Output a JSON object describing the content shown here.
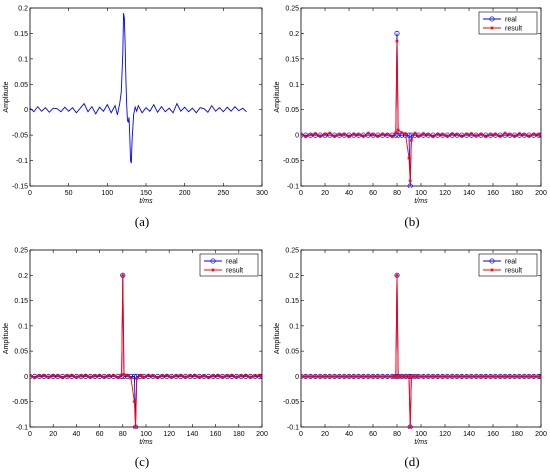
{
  "figure": {
    "panels": [
      {
        "id": "a",
        "caption": "(a)"
      },
      {
        "id": "b",
        "caption": "(b)"
      },
      {
        "id": "c",
        "caption": "(c)"
      },
      {
        "id": "d",
        "caption": "(d)"
      }
    ]
  },
  "colors": {
    "real": "#0000ff",
    "result": "#ff0000",
    "axis": "#000000"
  },
  "chart_data": [
    {
      "id": "a",
      "type": "line",
      "title": "",
      "xlabel": "t/ms",
      "ylabel": "Amplitude",
      "xlim": [
        0,
        300
      ],
      "ylim": [
        -0.15,
        0.2
      ],
      "xticks": [
        0,
        50,
        100,
        150,
        200,
        250,
        300
      ],
      "yticks": [
        -0.15,
        -0.1,
        -0.05,
        0,
        0.05,
        0.1,
        0.15,
        0.2
      ],
      "ytick_labels": [
        "-0.15",
        "-0.1",
        "-0.05",
        "0",
        "0.05",
        "0.1",
        "0.15",
        "0.2"
      ],
      "grid": false,
      "series": [
        {
          "color": "#0000ff",
          "marker": "none",
          "x": [
            0,
            5,
            10,
            15,
            20,
            25,
            30,
            35,
            40,
            45,
            50,
            55,
            60,
            65,
            70,
            75,
            80,
            85,
            90,
            95,
            100,
            105,
            110,
            113,
            116,
            118,
            120,
            121,
            122,
            123,
            124,
            125,
            126,
            127,
            128,
            129,
            130,
            131,
            132,
            134,
            136,
            138,
            140,
            145,
            150,
            155,
            160,
            165,
            170,
            175,
            180,
            185,
            190,
            195,
            200,
            205,
            210,
            215,
            220,
            225,
            230,
            235,
            240,
            245,
            250,
            255,
            260,
            265,
            270,
            275,
            280
          ],
          "y": [
            0.003,
            -0.004,
            0.006,
            -0.003,
            0.004,
            -0.005,
            0.003,
            0.002,
            -0.004,
            0.005,
            -0.003,
            0.004,
            -0.006,
            0.003,
            0.012,
            -0.004,
            0.006,
            -0.008,
            0.005,
            -0.003,
            0.01,
            -0.006,
            0.008,
            -0.01,
            0.012,
            0.035,
            0.11,
            0.19,
            0.18,
            0.13,
            0.06,
            0.01,
            -0.02,
            -0.025,
            -0.015,
            -0.05,
            -0.1,
            -0.105,
            -0.06,
            -0.01,
            0.005,
            -0.003,
            0.008,
            -0.006,
            0.004,
            -0.003,
            0.01,
            -0.005,
            0.006,
            -0.004,
            0.003,
            -0.006,
            0.012,
            -0.003,
            0.005,
            -0.004,
            0.003,
            -0.006,
            0.004,
            0.002,
            -0.005,
            0.008,
            -0.003,
            0.004,
            -0.004,
            0.005,
            -0.003,
            0.006,
            -0.002,
            0.003,
            -0.004
          ]
        }
      ]
    },
    {
      "id": "b",
      "type": "line",
      "title": "",
      "xlabel": "t/ms",
      "ylabel": "Amplitude",
      "xlim": [
        0,
        200
      ],
      "ylim": [
        -0.1,
        0.25
      ],
      "xticks": [
        0,
        20,
        40,
        60,
        80,
        100,
        120,
        140,
        160,
        180,
        200
      ],
      "yticks": [
        -0.1,
        -0.05,
        0,
        0.05,
        0.1,
        0.15,
        0.2,
        0.25
      ],
      "ytick_labels": [
        "-0.1",
        "-0.05",
        "0",
        "0.05",
        "0.1",
        "0.15",
        "0.2",
        "0.25"
      ],
      "grid": false,
      "legend": {
        "position": "top-right",
        "entries": [
          "real",
          "result"
        ]
      },
      "series": [
        {
          "name": "real",
          "color": "#0000ff",
          "marker": "circle",
          "x": [
            0,
            4,
            8,
            12,
            16,
            20,
            24,
            28,
            32,
            36,
            40,
            44,
            48,
            52,
            56,
            60,
            64,
            68,
            72,
            76,
            79,
            80,
            81,
            84,
            87,
            90,
            91,
            92,
            95,
            98,
            102,
            106,
            110,
            114,
            118,
            122,
            126,
            130,
            134,
            138,
            142,
            146,
            150,
            154,
            158,
            162,
            166,
            170,
            174,
            178,
            182,
            186,
            190,
            194,
            198,
            200
          ],
          "y": [
            0,
            0,
            0,
            0,
            0,
            0,
            0,
            0,
            0,
            0,
            0,
            0,
            0,
            0,
            0,
            0,
            0,
            0,
            0,
            0,
            0,
            0.2,
            0,
            0,
            0,
            0,
            -0.1,
            0,
            0,
            0,
            0,
            0,
            0,
            0,
            0,
            0,
            0,
            0,
            0,
            0,
            0,
            0,
            0,
            0,
            0,
            0,
            0,
            0,
            0,
            0,
            0,
            0,
            0,
            0,
            0,
            0
          ]
        },
        {
          "name": "result",
          "color": "#ff0000",
          "marker": "asterisk",
          "x": [
            0,
            4,
            8,
            12,
            16,
            20,
            24,
            28,
            32,
            36,
            40,
            44,
            48,
            52,
            56,
            60,
            64,
            68,
            72,
            76,
            79,
            80,
            81,
            84,
            87,
            90,
            91,
            92,
            95,
            98,
            102,
            106,
            110,
            114,
            118,
            122,
            126,
            130,
            134,
            138,
            142,
            146,
            150,
            154,
            158,
            162,
            166,
            170,
            174,
            178,
            182,
            186,
            190,
            194,
            198,
            200
          ],
          "y": [
            0.002,
            -0.003,
            0.001,
            0.003,
            -0.002,
            0.002,
            0.004,
            -0.002,
            0.001,
            0.002,
            -0.003,
            0.002,
            0.001,
            -0.002,
            0.004,
            0.001,
            -0.002,
            0.002,
            0.001,
            -0.003,
            0.005,
            0.185,
            0.01,
            0.005,
            0.003,
            -0.045,
            -0.09,
            -0.01,
            0.004,
            -0.002,
            0.003,
            0.001,
            -0.003,
            0.002,
            0.001,
            -0.002,
            0.003,
            0.001,
            -0.002,
            0.002,
            0.003,
            -0.001,
            0.002,
            -0.003,
            0.001,
            0.002,
            -0.002,
            0.004,
            0.001,
            -0.002,
            0.003,
            0.001,
            -0.002,
            0.002,
            0.001,
            0
          ]
        }
      ]
    },
    {
      "id": "c",
      "type": "line",
      "title": "",
      "xlabel": "t/ms",
      "ylabel": "Amplitude",
      "xlim": [
        0,
        200
      ],
      "ylim": [
        -0.1,
        0.25
      ],
      "xticks": [
        0,
        20,
        40,
        60,
        80,
        100,
        120,
        140,
        160,
        180,
        200
      ],
      "yticks": [
        -0.1,
        -0.05,
        0,
        0.05,
        0.1,
        0.15,
        0.2,
        0.25
      ],
      "ytick_labels": [
        "-0.1",
        "-0.05",
        "0",
        "0.05",
        "0.1",
        "0.15",
        "0.2",
        "0.25"
      ],
      "grid": false,
      "legend": {
        "position": "top-right",
        "entries": [
          "real",
          "result"
        ]
      },
      "series": [
        {
          "name": "real",
          "color": "#0000ff",
          "marker": "circle",
          "x": [
            0,
            4,
            8,
            12,
            16,
            20,
            24,
            28,
            32,
            36,
            40,
            44,
            48,
            52,
            56,
            60,
            64,
            68,
            72,
            76,
            79,
            80,
            81,
            84,
            87,
            90,
            91,
            92,
            95,
            98,
            102,
            106,
            110,
            114,
            118,
            122,
            126,
            130,
            134,
            138,
            142,
            146,
            150,
            154,
            158,
            162,
            166,
            170,
            174,
            178,
            182,
            186,
            190,
            194,
            198,
            200
          ],
          "y": [
            0,
            0,
            0,
            0,
            0,
            0,
            0,
            0,
            0,
            0,
            0,
            0,
            0,
            0,
            0,
            0,
            0,
            0,
            0,
            0,
            0,
            0.2,
            0,
            0,
            0,
            0,
            -0.1,
            0,
            0,
            0,
            0,
            0,
            0,
            0,
            0,
            0,
            0,
            0,
            0,
            0,
            0,
            0,
            0,
            0,
            0,
            0,
            0,
            0,
            0,
            0,
            0,
            0,
            0,
            0,
            0,
            0
          ]
        },
        {
          "name": "result",
          "color": "#ff0000",
          "marker": "asterisk",
          "x": [
            0,
            4,
            8,
            12,
            16,
            20,
            24,
            28,
            32,
            36,
            40,
            44,
            48,
            52,
            56,
            60,
            64,
            68,
            72,
            76,
            79,
            80,
            81,
            84,
            87,
            90,
            91,
            92,
            95,
            98,
            102,
            106,
            110,
            114,
            118,
            122,
            126,
            130,
            134,
            138,
            142,
            146,
            150,
            154,
            158,
            162,
            166,
            170,
            174,
            178,
            182,
            186,
            190,
            194,
            198,
            200
          ],
          "y": [
            0.001,
            -0.002,
            0.001,
            0.002,
            -0.001,
            0.002,
            0.001,
            -0.002,
            0.001,
            0.002,
            -0.001,
            0.001,
            0.002,
            -0.001,
            0.001,
            0.002,
            -0.001,
            0.001,
            0.002,
            -0.002,
            0.003,
            0.2,
            0.004,
            0.002,
            -0.003,
            -0.05,
            -0.1,
            -0.004,
            0.002,
            -0.001,
            0.002,
            0.001,
            -0.002,
            0.001,
            0.002,
            -0.001,
            0.001,
            0.002,
            -0.001,
            0.001,
            0.002,
            -0.001,
            0.001,
            -0.002,
            0.001,
            0.002,
            -0.001,
            0.001,
            0.002,
            -0.001,
            0.001,
            0.002,
            -0.001,
            0.001,
            0.002,
            0
          ]
        }
      ]
    },
    {
      "id": "d",
      "type": "line",
      "title": "",
      "xlabel": "t/ms",
      "ylabel": "Amplitude",
      "xlim": [
        0,
        200
      ],
      "ylim": [
        -0.1,
        0.25
      ],
      "xticks": [
        0,
        20,
        40,
        60,
        80,
        100,
        120,
        140,
        160,
        180,
        200
      ],
      "yticks": [
        -0.1,
        -0.05,
        0,
        0.05,
        0.1,
        0.15,
        0.2,
        0.25
      ],
      "ytick_labels": [
        "-0.1",
        "-0.05",
        "0",
        "0.05",
        "0.1",
        "0.15",
        "0.2",
        "0.25"
      ],
      "grid": false,
      "legend": {
        "position": "top-right",
        "entries": [
          "real",
          "result"
        ]
      },
      "series": [
        {
          "name": "real",
          "color": "#0000ff",
          "marker": "circle",
          "x": [
            0,
            4,
            8,
            12,
            16,
            20,
            24,
            28,
            32,
            36,
            40,
            44,
            48,
            52,
            56,
            60,
            64,
            68,
            72,
            76,
            79,
            80,
            81,
            84,
            87,
            90,
            91,
            92,
            95,
            98,
            102,
            106,
            110,
            114,
            118,
            122,
            126,
            130,
            134,
            138,
            142,
            146,
            150,
            154,
            158,
            162,
            166,
            170,
            174,
            178,
            182,
            186,
            190,
            194,
            198,
            200
          ],
          "y": [
            0,
            0,
            0,
            0,
            0,
            0,
            0,
            0,
            0,
            0,
            0,
            0,
            0,
            0,
            0,
            0,
            0,
            0,
            0,
            0,
            0,
            0.2,
            0,
            0,
            0,
            0,
            -0.1,
            0,
            0,
            0,
            0,
            0,
            0,
            0,
            0,
            0,
            0,
            0,
            0,
            0,
            0,
            0,
            0,
            0,
            0,
            0,
            0,
            0,
            0,
            0,
            0,
            0,
            0,
            0,
            0,
            0
          ]
        },
        {
          "name": "result",
          "color": "#ff0000",
          "marker": "asterisk",
          "x": [
            0,
            4,
            8,
            12,
            16,
            20,
            24,
            28,
            32,
            36,
            40,
            44,
            48,
            52,
            56,
            60,
            64,
            68,
            72,
            76,
            79,
            80,
            81,
            84,
            87,
            90,
            91,
            92,
            95,
            98,
            102,
            106,
            110,
            114,
            118,
            122,
            126,
            130,
            134,
            138,
            142,
            146,
            150,
            154,
            158,
            162,
            166,
            170,
            174,
            178,
            182,
            186,
            190,
            194,
            198,
            200
          ],
          "y": [
            0,
            0,
            0,
            0,
            0,
            0,
            0,
            0,
            0,
            0,
            0,
            0,
            0,
            0,
            0,
            0,
            0,
            0,
            0,
            0,
            0,
            0.2,
            0,
            0,
            0,
            0,
            -0.1,
            0,
            0,
            0,
            0,
            0,
            0,
            0,
            0,
            0,
            0,
            0,
            0,
            0,
            0,
            0,
            0,
            0,
            0,
            0,
            0,
            0,
            0,
            0,
            0,
            0,
            0,
            0,
            0,
            0
          ]
        }
      ]
    }
  ]
}
